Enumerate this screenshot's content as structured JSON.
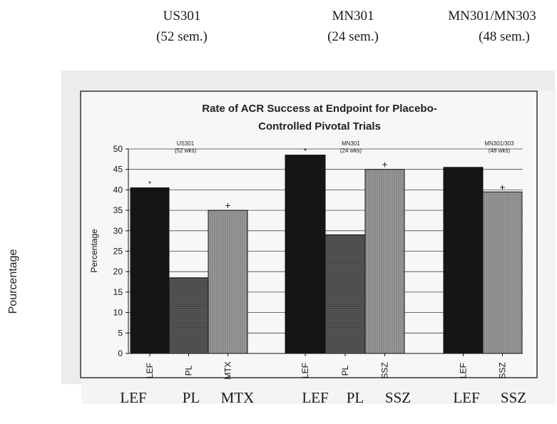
{
  "top_groups": [
    {
      "name": "US301",
      "duration": "(52 sem.)"
    },
    {
      "name": "MN301",
      "duration": "(24 sem.)"
    },
    {
      "name": "MN301/MN303",
      "duration": "(48 sem.)"
    }
  ],
  "side_ylabel": "Pourcentage",
  "bottom_labels": [
    "LEF",
    "PL",
    "MTX",
    "LEF",
    "PL",
    "SSZ",
    "LEF",
    "SSZ"
  ],
  "colors": {
    "LEF": "#151515",
    "PL": "#5a5a5a",
    "comparator": "#9a9a9a"
  },
  "chart_data": {
    "type": "bar",
    "title": "Rate of ACR Success at Endpoint for Placebo-Controlled Pivotal Trials",
    "title_lines": [
      "Rate of ACR Success at Endpoint for Placebo-",
      "Controlled Pivotal Trials"
    ],
    "ylabel": "Percentage",
    "xlabel": "",
    "ylim": [
      0,
      50
    ],
    "yticks": [
      0,
      5,
      10,
      15,
      20,
      25,
      30,
      35,
      40,
      45,
      50
    ],
    "grid": true,
    "groups": [
      {
        "label": "US301",
        "sublabel": "(52 wks)",
        "bars": [
          {
            "category": "LEF",
            "value": 40.5,
            "mark": "*"
          },
          {
            "category": "PL",
            "value": 18.5,
            "mark": ""
          },
          {
            "category": "MTX",
            "value": 35,
            "mark": "+"
          }
        ]
      },
      {
        "label": "MN301",
        "sublabel": "(24 wks)",
        "bars": [
          {
            "category": "LEF",
            "value": 48.5,
            "mark": "*"
          },
          {
            "category": "PL",
            "value": 29,
            "mark": ""
          },
          {
            "category": "SSZ",
            "value": 45,
            "mark": "+"
          }
        ]
      },
      {
        "label": "MN301/303",
        "sublabel": "(48 wks)",
        "bars": [
          {
            "category": "LEF",
            "value": 45.5,
            "mark": ""
          },
          {
            "category": "SSZ",
            "value": 39.5,
            "mark": "+"
          }
        ]
      }
    ]
  }
}
